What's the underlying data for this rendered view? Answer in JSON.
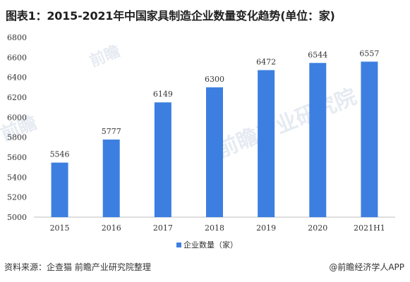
{
  "title": "图表1：2015-2021年中国家具制造企业数量变化趋势(单位：家)",
  "source": "资料来源：企查猫 前瞻产业研究院整理",
  "credit": "@前瞻经济学人APP",
  "watermark": {
    "text_a": "前瞻",
    "text_b": "前瞻产业研究院"
  },
  "colors": {
    "bar": "#3d7fe0",
    "axis": "#bfbfbf",
    "text": "#333333"
  },
  "chart_data": {
    "type": "bar",
    "title": "图表1：2015-2021年中国家具制造企业数量变化趋势(单位：家)",
    "categories": [
      "2015",
      "2016",
      "2017",
      "2018",
      "2019",
      "2020",
      "2021H1"
    ],
    "series": [
      {
        "name": "企业数量（家）",
        "values": [
          5546,
          5777,
          6149,
          6300,
          6472,
          6544,
          6557
        ]
      }
    ],
    "data_labels": [
      "5546",
      "5777",
      "6149",
      "6300",
      "6472",
      "6544",
      "6557"
    ],
    "yticks": [
      "5000",
      "5200",
      "5400",
      "5600",
      "5800",
      "6000",
      "6200",
      "6400",
      "6600",
      "6800"
    ],
    "ylim": [
      5000,
      6800
    ],
    "xlabel": "",
    "ylabel": "",
    "grid": false,
    "legend": "bottom-center"
  }
}
